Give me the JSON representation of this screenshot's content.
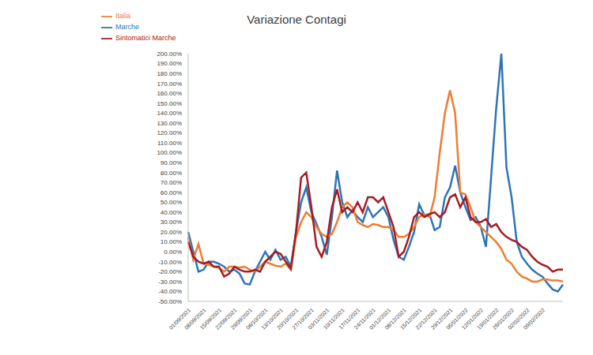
{
  "chart_data": {
    "type": "line",
    "title": "Variazione Contagi",
    "categories": [
      "01/09/2021",
      null,
      null,
      "08/09/2021",
      null,
      null,
      "15/09/2021",
      null,
      null,
      "22/09/2021",
      null,
      null,
      "29/09/2021",
      null,
      null,
      "06/10/2021",
      null,
      null,
      "13/10/2021",
      null,
      null,
      "20/10/2021",
      null,
      null,
      "27/10/2021",
      null,
      null,
      "03/11/2021",
      null,
      null,
      "10/11/2021",
      null,
      null,
      "17/11/2021",
      null,
      null,
      "24/11/2021",
      null,
      null,
      "01/12/2021",
      null,
      null,
      "08/12/2021",
      null,
      null,
      "15/12/2021",
      null,
      null,
      "22/12/2021",
      null,
      null,
      "29/12/2021",
      null,
      null,
      "05/01/2022",
      null,
      null,
      "12/01/2022",
      null,
      null,
      "19/01/2022",
      null,
      null,
      "26/01/2022",
      null,
      null,
      "02/02/2022",
      null,
      null,
      "09/02/2022",
      null,
      null,
      null,
      null
    ],
    "series": [
      {
        "name": "Marche",
        "color": "#2e75b6",
        "values": [
          20,
          0,
          -20,
          -18,
          -10,
          -10,
          -12,
          -15,
          -20,
          -18,
          -22,
          -32,
          -33,
          -20,
          -10,
          0,
          -8,
          2,
          -8,
          -5,
          -15,
          20,
          50,
          65,
          40,
          28,
          15,
          -3,
          35,
          82,
          50,
          35,
          42,
          35,
          30,
          45,
          35,
          40,
          45,
          35,
          12,
          -5,
          -8,
          5,
          20,
          48,
          37,
          38,
          22,
          25,
          55,
          65,
          87,
          60,
          45,
          32,
          35,
          25,
          5,
          75,
          145,
          200,
          85,
          55,
          10,
          -5,
          -12,
          -18,
          -22,
          -25,
          -32,
          -38,
          -40,
          -33
        ]
      },
      {
        "name": "Italia",
        "color": "#ed7d31",
        "values": [
          15,
          -8,
          8,
          -12,
          -13,
          -15,
          -16,
          -20,
          -15,
          -15,
          -16,
          -15,
          -18,
          -20,
          -15,
          -10,
          -12,
          -14,
          -15,
          -12,
          -18,
          15,
          30,
          40,
          35,
          25,
          18,
          15,
          18,
          30,
          45,
          50,
          45,
          30,
          27,
          25,
          28,
          27,
          25,
          25,
          22,
          15,
          15,
          18,
          25,
          35,
          38,
          35,
          55,
          100,
          140,
          163,
          140,
          60,
          58,
          45,
          30,
          25,
          20,
          15,
          10,
          3,
          -8,
          -12,
          -20,
          -25,
          -27,
          -30,
          -30,
          -28,
          -28,
          -29,
          -29,
          -30
        ]
      },
      {
        "name": "Sintomatici Marche",
        "color": "#a51c24",
        "values": [
          10,
          -5,
          -10,
          -12,
          -10,
          -15,
          -15,
          -25,
          -22,
          -15,
          -18,
          -20,
          -20,
          -18,
          -20,
          -10,
          -5,
          0,
          -2,
          -10,
          -17,
          20,
          75,
          80,
          45,
          5,
          -5,
          10,
          45,
          63,
          40,
          45,
          40,
          50,
          40,
          55,
          55,
          50,
          55,
          40,
          25,
          -5,
          0,
          15,
          35,
          40,
          35,
          38,
          40,
          35,
          40,
          55,
          58,
          45,
          55,
          35,
          30,
          30,
          33,
          25,
          28,
          20,
          15,
          12,
          10,
          5,
          2,
          -5,
          -10,
          -13,
          -15,
          -20,
          -18,
          -18
        ]
      }
    ],
    "ylim": [
      -50,
      200
    ],
    "yticks": [
      {
        "value": -50,
        "label": "-50.00%"
      },
      {
        "value": -40,
        "label": "-40.00%"
      },
      {
        "value": -30,
        "label": "-30.00%"
      },
      {
        "value": -20,
        "label": "-20.00%"
      },
      {
        "value": -10,
        "label": "-10.00%"
      },
      {
        "value": 0,
        "label": "0.00%"
      },
      {
        "value": 10,
        "label": "10.00%"
      },
      {
        "value": 20,
        "label": "20.00%"
      },
      {
        "value": 30,
        "label": "30.00%"
      },
      {
        "value": 40,
        "label": "40.00%"
      },
      {
        "value": 50,
        "label": "50.00%"
      },
      {
        "value": 60,
        "label": "60.00%"
      },
      {
        "value": 70,
        "label": "70.00%"
      },
      {
        "value": 80,
        "label": "80.00%"
      },
      {
        "value": 90,
        "label": "90.00%"
      },
      {
        "value": 100,
        "label": "100.00%"
      },
      {
        "value": 110,
        "label": "110.00%"
      },
      {
        "value": 120,
        "label": "120.00%"
      },
      {
        "value": 130,
        "label": "130.00%"
      },
      {
        "value": 140,
        "label": "140.00%"
      },
      {
        "value": 150,
        "label": "150.00%"
      },
      {
        "value": 160,
        "label": "160.00%"
      },
      {
        "value": 170,
        "label": "170.00%"
      },
      {
        "value": 180,
        "label": "180.00%"
      },
      {
        "value": 190,
        "label": "190.00%"
      },
      {
        "value": 200,
        "label": "200.00%"
      }
    ],
    "grid": false,
    "legend": "upper left"
  }
}
